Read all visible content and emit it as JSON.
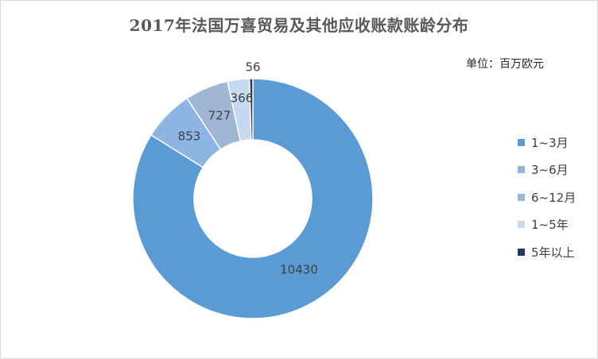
{
  "chart_data": {
    "type": "pie",
    "title": "2017年法国万喜贸易及其他应收账款账龄分布",
    "unit_label": "单位：百万欧元",
    "categories": [
      "1~3月",
      "3~6月",
      "6~12月",
      "1~5年",
      "5年以上"
    ],
    "values": [
      10430,
      853,
      727,
      366,
      56
    ],
    "data_labels": [
      "10430",
      "853",
      "727",
      "366",
      "56"
    ],
    "colors": [
      "#5b9bd5",
      "#8eb4e3",
      "#9fb7d4",
      "#c5d9f0",
      "#203864"
    ],
    "style": "donut",
    "legend_position": "right"
  }
}
